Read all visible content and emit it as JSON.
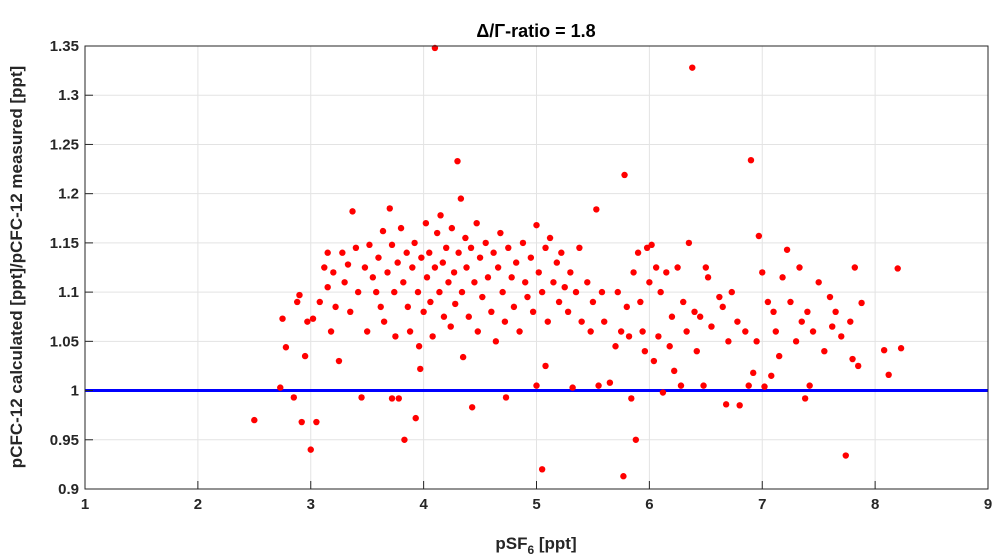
{
  "chart_data": {
    "type": "scatter",
    "title": "Δ/Γ-ratio = 1.8",
    "xlabel": "pSF",
    "xlabel_subscript": "6",
    "xlabel_unit": " [ppt]",
    "ylabel": "pCFC-12 calculated [ppt]/pCFC-12 measured [ppt]",
    "xlim": [
      1,
      9
    ],
    "ylim": [
      0.9,
      1.35
    ],
    "xticks": [
      "1",
      "2",
      "3",
      "4",
      "5",
      "6",
      "7",
      "8",
      "9"
    ],
    "yticks": [
      "0.9",
      "0.95",
      "1",
      "1.05",
      "1.1",
      "1.15",
      "1.2",
      "1.25",
      "1.3",
      "1.35"
    ],
    "grid": true,
    "reference_line": {
      "y": 1.0,
      "color": "#0000ff"
    },
    "marker_color": "#ff0000",
    "series": [
      {
        "values": [
          [
            2.5,
            0.97
          ],
          [
            2.73,
            1.003
          ],
          [
            2.75,
            1.073
          ],
          [
            2.78,
            1.044
          ],
          [
            2.85,
            0.993
          ],
          [
            2.88,
            1.09
          ],
          [
            2.9,
            1.097
          ],
          [
            2.92,
            0.968
          ],
          [
            2.95,
            1.035
          ],
          [
            2.97,
            1.07
          ],
          [
            3.0,
            0.94
          ],
          [
            3.02,
            1.073
          ],
          [
            3.05,
            0.968
          ],
          [
            3.08,
            1.09
          ],
          [
            3.12,
            1.125
          ],
          [
            3.15,
            1.105
          ],
          [
            3.15,
            1.14
          ],
          [
            3.18,
            1.06
          ],
          [
            3.2,
            1.12
          ],
          [
            3.22,
            1.085
          ],
          [
            3.25,
            1.03
          ],
          [
            3.28,
            1.14
          ],
          [
            3.3,
            1.11
          ],
          [
            3.33,
            1.128
          ],
          [
            3.35,
            1.08
          ],
          [
            3.37,
            1.182
          ],
          [
            3.4,
            1.145
          ],
          [
            3.42,
            1.1
          ],
          [
            3.45,
            0.993
          ],
          [
            3.48,
            1.125
          ],
          [
            3.5,
            1.06
          ],
          [
            3.52,
            1.148
          ],
          [
            3.55,
            1.115
          ],
          [
            3.58,
            1.1
          ],
          [
            3.6,
            1.135
          ],
          [
            3.62,
            1.085
          ],
          [
            3.64,
            1.162
          ],
          [
            3.65,
            1.07
          ],
          [
            3.68,
            1.12
          ],
          [
            3.7,
            1.185
          ],
          [
            3.72,
            1.148
          ],
          [
            3.72,
            0.992
          ],
          [
            3.74,
            1.1
          ],
          [
            3.75,
            1.055
          ],
          [
            3.77,
            1.13
          ],
          [
            3.78,
            0.992
          ],
          [
            3.8,
            1.165
          ],
          [
            3.82,
            1.11
          ],
          [
            3.83,
            0.95
          ],
          [
            3.85,
            1.14
          ],
          [
            3.86,
            1.085
          ],
          [
            3.88,
            1.06
          ],
          [
            3.9,
            1.125
          ],
          [
            3.92,
            1.15
          ],
          [
            3.93,
            0.972
          ],
          [
            3.95,
            1.1
          ],
          [
            3.96,
            1.045
          ],
          [
            3.97,
            1.022
          ],
          [
            3.98,
            1.135
          ],
          [
            4.0,
            1.08
          ],
          [
            4.02,
            1.17
          ],
          [
            4.03,
            1.115
          ],
          [
            4.05,
            1.14
          ],
          [
            4.06,
            1.09
          ],
          [
            4.08,
            1.055
          ],
          [
            4.1,
            1.348
          ],
          [
            4.1,
            1.125
          ],
          [
            4.12,
            1.16
          ],
          [
            4.14,
            1.1
          ],
          [
            4.15,
            1.178
          ],
          [
            4.17,
            1.13
          ],
          [
            4.18,
            1.075
          ],
          [
            4.2,
            1.145
          ],
          [
            4.22,
            1.11
          ],
          [
            4.24,
            1.065
          ],
          [
            4.25,
            1.165
          ],
          [
            4.27,
            1.12
          ],
          [
            4.28,
            1.088
          ],
          [
            4.3,
            1.233
          ],
          [
            4.31,
            1.14
          ],
          [
            4.33,
            1.195
          ],
          [
            4.34,
            1.1
          ],
          [
            4.35,
            1.034
          ],
          [
            4.37,
            1.155
          ],
          [
            4.38,
            1.125
          ],
          [
            4.4,
            1.075
          ],
          [
            4.42,
            1.145
          ],
          [
            4.43,
            0.983
          ],
          [
            4.45,
            1.11
          ],
          [
            4.47,
            1.17
          ],
          [
            4.48,
            1.06
          ],
          [
            4.5,
            1.135
          ],
          [
            4.52,
            1.095
          ],
          [
            4.55,
            1.15
          ],
          [
            4.57,
            1.115
          ],
          [
            4.6,
            1.08
          ],
          [
            4.62,
            1.14
          ],
          [
            4.64,
            1.05
          ],
          [
            4.66,
            1.125
          ],
          [
            4.68,
            1.16
          ],
          [
            4.7,
            1.1
          ],
          [
            4.72,
            1.07
          ],
          [
            4.73,
            0.993
          ],
          [
            4.75,
            1.145
          ],
          [
            4.78,
            1.115
          ],
          [
            4.8,
            1.085
          ],
          [
            4.82,
            1.13
          ],
          [
            4.85,
            1.06
          ],
          [
            4.88,
            1.15
          ],
          [
            4.9,
            1.11
          ],
          [
            4.92,
            1.095
          ],
          [
            4.95,
            1.135
          ],
          [
            4.97,
            1.08
          ],
          [
            5.0,
            1.168
          ],
          [
            5.0,
            1.005
          ],
          [
            5.02,
            1.12
          ],
          [
            5.05,
            1.1
          ],
          [
            5.05,
            0.92
          ],
          [
            5.08,
            1.145
          ],
          [
            5.08,
            1.025
          ],
          [
            5.1,
            1.07
          ],
          [
            5.12,
            1.155
          ],
          [
            5.15,
            1.11
          ],
          [
            5.18,
            1.13
          ],
          [
            5.2,
            1.09
          ],
          [
            5.22,
            1.14
          ],
          [
            5.25,
            1.105
          ],
          [
            5.28,
            1.08
          ],
          [
            5.3,
            1.12
          ],
          [
            5.32,
            1.003
          ],
          [
            5.35,
            1.1
          ],
          [
            5.38,
            1.145
          ],
          [
            5.4,
            1.07
          ],
          [
            5.45,
            1.11
          ],
          [
            5.48,
            1.06
          ],
          [
            5.5,
            1.09
          ],
          [
            5.53,
            1.184
          ],
          [
            5.55,
            1.005
          ],
          [
            5.58,
            1.1
          ],
          [
            5.6,
            1.07
          ],
          [
            5.65,
            1.008
          ],
          [
            5.7,
            1.045
          ],
          [
            5.72,
            1.1
          ],
          [
            5.75,
            1.06
          ],
          [
            5.77,
            0.913
          ],
          [
            5.78,
            1.219
          ],
          [
            5.8,
            1.085
          ],
          [
            5.82,
            1.055
          ],
          [
            5.84,
            0.992
          ],
          [
            5.86,
            1.12
          ],
          [
            5.88,
            0.95
          ],
          [
            5.9,
            1.14
          ],
          [
            5.92,
            1.09
          ],
          [
            5.94,
            1.06
          ],
          [
            5.96,
            1.04
          ],
          [
            5.98,
            1.145
          ],
          [
            6.0,
            1.11
          ],
          [
            6.02,
            1.148
          ],
          [
            6.04,
            1.03
          ],
          [
            6.06,
            1.125
          ],
          [
            6.08,
            1.055
          ],
          [
            6.1,
            1.1
          ],
          [
            6.12,
            0.998
          ],
          [
            6.15,
            1.12
          ],
          [
            6.18,
            1.045
          ],
          [
            6.2,
            1.075
          ],
          [
            6.22,
            1.02
          ],
          [
            6.25,
            1.125
          ],
          [
            6.28,
            1.005
          ],
          [
            6.3,
            1.09
          ],
          [
            6.33,
            1.06
          ],
          [
            6.35,
            1.15
          ],
          [
            6.38,
            1.328
          ],
          [
            6.4,
            1.08
          ],
          [
            6.42,
            1.04
          ],
          [
            6.45,
            1.075
          ],
          [
            6.48,
            1.005
          ],
          [
            6.5,
            1.125
          ],
          [
            6.52,
            1.115
          ],
          [
            6.55,
            1.065
          ],
          [
            6.62,
            1.095
          ],
          [
            6.65,
            1.085
          ],
          [
            6.68,
            0.986
          ],
          [
            6.7,
            1.05
          ],
          [
            6.73,
            1.1
          ],
          [
            6.78,
            1.07
          ],
          [
            6.8,
            0.985
          ],
          [
            6.85,
            1.06
          ],
          [
            6.88,
            1.005
          ],
          [
            6.9,
            1.234
          ],
          [
            6.92,
            1.018
          ],
          [
            6.95,
            1.05
          ],
          [
            6.97,
            1.157
          ],
          [
            7.0,
            1.12
          ],
          [
            7.02,
            1.004
          ],
          [
            7.05,
            1.09
          ],
          [
            7.08,
            1.015
          ],
          [
            7.1,
            1.08
          ],
          [
            7.12,
            1.06
          ],
          [
            7.15,
            1.035
          ],
          [
            7.18,
            1.115
          ],
          [
            7.22,
            1.143
          ],
          [
            7.25,
            1.09
          ],
          [
            7.3,
            1.05
          ],
          [
            7.33,
            1.125
          ],
          [
            7.35,
            1.07
          ],
          [
            7.38,
            0.992
          ],
          [
            7.4,
            1.08
          ],
          [
            7.42,
            1.005
          ],
          [
            7.45,
            1.06
          ],
          [
            7.5,
            1.11
          ],
          [
            7.55,
            1.04
          ],
          [
            7.6,
            1.095
          ],
          [
            7.62,
            1.065
          ],
          [
            7.65,
            1.08
          ],
          [
            7.7,
            1.055
          ],
          [
            7.74,
            0.934
          ],
          [
            7.78,
            1.07
          ],
          [
            7.8,
            1.032
          ],
          [
            7.82,
            1.125
          ],
          [
            7.85,
            1.025
          ],
          [
            7.88,
            1.089
          ],
          [
            8.08,
            1.041
          ],
          [
            8.12,
            1.016
          ],
          [
            8.2,
            1.124
          ],
          [
            8.23,
            1.043
          ]
        ]
      }
    ]
  }
}
